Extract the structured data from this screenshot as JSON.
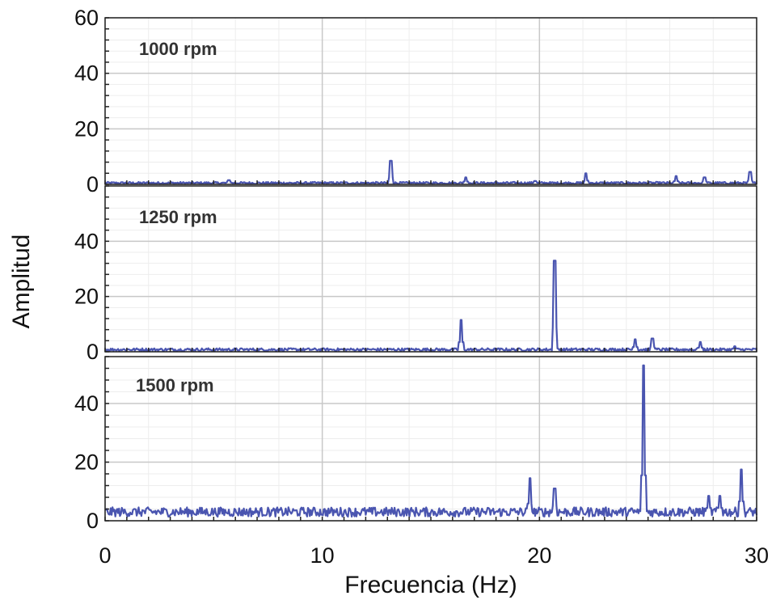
{
  "chart_data": {
    "type": "line",
    "xlabel": "Frecuencia (Hz)",
    "ylabel": "Amplitud",
    "xlim": [
      0,
      30
    ],
    "xticks": [
      0,
      10,
      20,
      30
    ],
    "grid": true,
    "colors": {
      "series": "#4a55b0"
    },
    "panels": [
      {
        "label": "1000 rpm",
        "ylim": [
          0,
          60
        ],
        "yticks": [
          0,
          20,
          40,
          60
        ],
        "baseline": 0.5,
        "noise": 0.4,
        "peaks": [
          {
            "x": 5.7,
            "y": 1.5
          },
          {
            "x": 13.15,
            "y": 8.5
          },
          {
            "x": 16.6,
            "y": 2.5
          },
          {
            "x": 19.8,
            "y": 1.2
          },
          {
            "x": 22.15,
            "y": 4.0
          },
          {
            "x": 26.3,
            "y": 3.0
          },
          {
            "x": 27.6,
            "y": 2.5
          },
          {
            "x": 29.7,
            "y": 4.5
          }
        ]
      },
      {
        "label": "1250 rpm",
        "ylim": [
          0,
          60
        ],
        "yticks": [
          0,
          20,
          40
        ],
        "baseline": 0.8,
        "noise": 0.5,
        "peaks": [
          {
            "x": 16.4,
            "y": 11.5
          },
          {
            "x": 20.7,
            "y": 33
          },
          {
            "x": 24.4,
            "y": 4.5
          },
          {
            "x": 25.2,
            "y": 4.8
          },
          {
            "x": 27.4,
            "y": 3.5
          },
          {
            "x": 29.0,
            "y": 2.0
          }
        ]
      },
      {
        "label": "1500 rpm",
        "ylim": [
          0,
          56
        ],
        "yticks": [
          0,
          20,
          40
        ],
        "baseline": 3.0,
        "noise": 1.6,
        "peaks": [
          {
            "x": 19.55,
            "y": 14.5
          },
          {
            "x": 20.7,
            "y": 11
          },
          {
            "x": 24.8,
            "y": 53
          },
          {
            "x": 27.8,
            "y": 8.5
          },
          {
            "x": 28.3,
            "y": 8.5
          },
          {
            "x": 29.3,
            "y": 17.5
          }
        ]
      }
    ]
  }
}
